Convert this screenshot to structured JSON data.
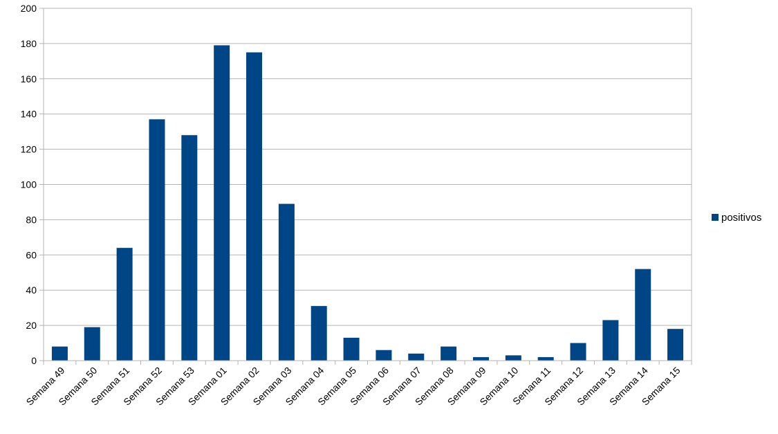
{
  "chart_data": {
    "type": "bar",
    "title": "",
    "xlabel": "",
    "ylabel": "",
    "categories": [
      "Semana 49",
      "Semana 50",
      "Semana 51",
      "Semana 52",
      "Semana 53",
      "Semana 01",
      "Semana 02",
      "Semana 03",
      "Semana 04",
      "Semana 05",
      "Semana 06",
      "Semana 07",
      "Semana 08",
      "Semana 09",
      "Semana 10",
      "Semana 11",
      "Semana 12",
      "Semana 13",
      "Semana 14",
      "Semana 15"
    ],
    "series": [
      {
        "name": "positivos",
        "values": [
          8,
          19,
          64,
          137,
          128,
          179,
          175,
          89,
          31,
          13,
          6,
          4,
          8,
          2,
          3,
          2,
          10,
          23,
          52,
          18
        ]
      }
    ],
    "ylim": [
      0,
      200
    ],
    "yticks": [
      "0",
      "20",
      "40",
      "60",
      "80",
      "100",
      "120",
      "140",
      "160",
      "180",
      "200"
    ],
    "grid": true,
    "legend_position": "right",
    "colors": {
      "bar": "#004586",
      "grid": "#b3b3b3",
      "axis": "#b3b3b3"
    }
  }
}
